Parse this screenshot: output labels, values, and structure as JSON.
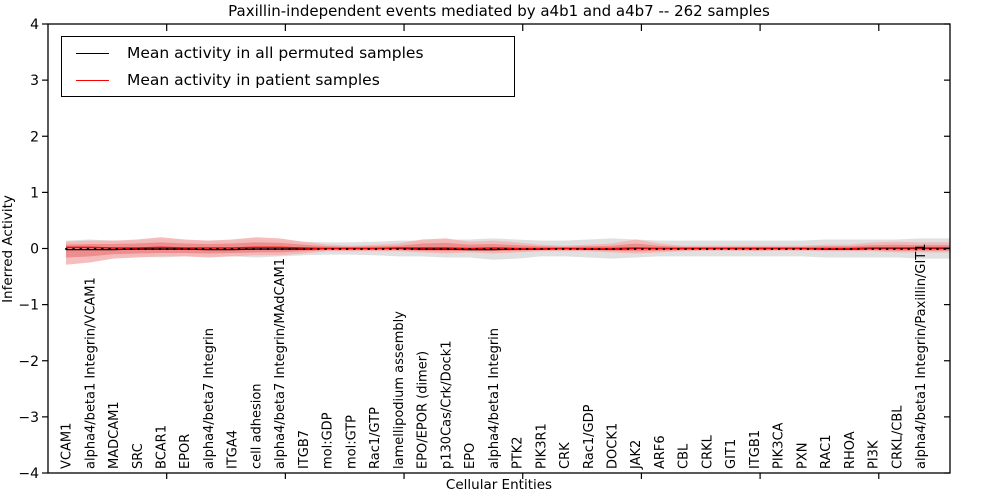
{
  "title": "Paxillin-independent events mediated by a4b1 and a4b7 -- 262 samples",
  "legend": {
    "entries": [
      {
        "label": "Mean activity in all permuted samples",
        "color": "#000000"
      },
      {
        "label": "Mean activity in patient samples",
        "color": "#ff0000"
      }
    ]
  },
  "chart_data": {
    "type": "area",
    "title": "Paxillin-independent events mediated by a4b1 and a4b7 -- 262 samples",
    "xlabel": "Cellular Entities",
    "ylabel": "Inferred Activity",
    "ylim": [
      -4,
      4
    ],
    "ytick_labels": [
      "4",
      "3",
      "2",
      "1",
      "0",
      "−1",
      "−2",
      "−3",
      "−4"
    ],
    "grid": false,
    "legend_position": "upper left",
    "n_samples": 262,
    "categories": [
      "VCAM1",
      "alpha4/beta1 Integrin/VCAM1",
      "MADCAM1",
      "SRC",
      "BCAR1",
      "EPOR",
      "alpha4/beta7 Integrin",
      "ITGA4",
      "cell adhesion",
      "alpha4/beta7 Integrin/MAdCAM1",
      "ITGB7",
      "mol:GDP",
      "mol:GTP",
      "Rac1/GTP",
      "lamellipodium assembly",
      "EPO/EPOR (dimer)",
      "p130Cas/Crk/Dock1",
      "EPO",
      "alpha4/beta1 Integrin",
      "PTK2",
      "PIK3R1",
      "CRK",
      "Rac1/GDP",
      "DOCK1",
      "JAK2",
      "ARF6",
      "CBL",
      "CRKL",
      "GIT1",
      "ITGB1",
      "PIK3CA",
      "PXN",
      "RAC1",
      "RHOA",
      "PI3K",
      "CRKL/CBL",
      "alpha4/beta1 Integrin/Paxillin/GIT1"
    ],
    "series": [
      {
        "name": "Mean activity in all permuted samples",
        "color": "#000000",
        "band_color": "#e0e0e0",
        "values": [
          -0.02,
          -0.02,
          -0.02,
          -0.01,
          -0.01,
          -0.01,
          -0.02,
          -0.02,
          -0.01,
          -0.01,
          -0.01,
          0,
          0,
          0,
          0,
          -0.01,
          -0.01,
          -0.02,
          -0.02,
          -0.01,
          -0.01,
          0,
          -0.01,
          -0.01,
          0,
          0,
          0,
          0,
          0,
          0,
          0,
          0,
          -0.01,
          -0.01,
          0,
          0,
          0
        ],
        "band_top": [
          0.14,
          0.16,
          0.14,
          0.14,
          0.16,
          0.14,
          0.14,
          0.14,
          0.16,
          0.14,
          0.12,
          0.11,
          0.11,
          0.12,
          0.14,
          0.14,
          0.16,
          0.16,
          0.18,
          0.16,
          0.14,
          0.14,
          0.16,
          0.18,
          0.16,
          0.14,
          0.14,
          0.14,
          0.14,
          0.14,
          0.14,
          0.14,
          0.16,
          0.16,
          0.16,
          0.16,
          0.18
        ],
        "band_bottom": [
          -0.14,
          -0.16,
          -0.14,
          -0.14,
          -0.16,
          -0.14,
          -0.14,
          -0.14,
          -0.16,
          -0.14,
          -0.12,
          -0.11,
          -0.11,
          -0.12,
          -0.14,
          -0.14,
          -0.16,
          -0.16,
          -0.2,
          -0.18,
          -0.14,
          -0.14,
          -0.16,
          -0.18,
          -0.16,
          -0.14,
          -0.14,
          -0.14,
          -0.14,
          -0.14,
          -0.14,
          -0.14,
          -0.16,
          -0.16,
          -0.16,
          -0.16,
          -0.18
        ]
      },
      {
        "name": "Mean activity in patient samples",
        "color": "#ff0000",
        "band_outer_color": "#f5b2b2",
        "band_inner_color": "#ec8888",
        "values": [
          0.02,
          0.02,
          0.01,
          0.01,
          0.02,
          0.01,
          0.01,
          0.01,
          0.02,
          0.02,
          0.01,
          0,
          0,
          0,
          0.01,
          0.01,
          0.01,
          0,
          0.01,
          0,
          0,
          0,
          0,
          0,
          0.01,
          0,
          0,
          0,
          0,
          0,
          0,
          0,
          0,
          0,
          0.01,
          0.01,
          0.01
        ],
        "band_outer_top": [
          0.12,
          0.14,
          0.14,
          0.16,
          0.2,
          0.16,
          0.14,
          0.16,
          0.2,
          0.18,
          0.12,
          0.07,
          0.05,
          0.07,
          0.09,
          0.16,
          0.18,
          0.12,
          0.14,
          0.11,
          0.07,
          0.05,
          0.07,
          0.09,
          0.16,
          0.09,
          0.05,
          0.05,
          0.05,
          0.05,
          0.05,
          0.05,
          0.07,
          0.07,
          0.11,
          0.12,
          0.11
        ],
        "band_outer_bottom": [
          -0.29,
          -0.25,
          -0.18,
          -0.16,
          -0.14,
          -0.14,
          -0.16,
          -0.14,
          -0.12,
          -0.12,
          -0.09,
          -0.05,
          -0.05,
          -0.05,
          -0.05,
          -0.07,
          -0.09,
          -0.07,
          -0.09,
          -0.07,
          -0.05,
          -0.05,
          -0.05,
          -0.07,
          -0.09,
          -0.07,
          -0.05,
          -0.04,
          -0.04,
          -0.05,
          -0.04,
          -0.04,
          -0.05,
          -0.05,
          -0.05,
          -0.07,
          -0.07
        ],
        "band_inner_top": [
          0.07,
          0.08,
          0.08,
          0.09,
          0.11,
          0.09,
          0.08,
          0.09,
          0.11,
          0.1,
          0.07,
          0.04,
          0.03,
          0.04,
          0.05,
          0.09,
          0.1,
          0.07,
          0.08,
          0.06,
          0.04,
          0.03,
          0.04,
          0.05,
          0.09,
          0.05,
          0.03,
          0.03,
          0.03,
          0.03,
          0.03,
          0.03,
          0.04,
          0.04,
          0.06,
          0.07,
          0.06
        ],
        "band_inner_bottom": [
          -0.16,
          -0.14,
          -0.1,
          -0.09,
          -0.08,
          -0.08,
          -0.09,
          -0.08,
          -0.07,
          -0.07,
          -0.05,
          -0.03,
          -0.03,
          -0.03,
          -0.03,
          -0.04,
          -0.05,
          -0.04,
          -0.05,
          -0.04,
          -0.03,
          -0.03,
          -0.03,
          -0.04,
          -0.05,
          -0.04,
          -0.03,
          -0.02,
          -0.02,
          -0.03,
          -0.02,
          -0.02,
          -0.03,
          -0.03,
          -0.03,
          -0.04,
          -0.04
        ]
      }
    ]
  }
}
